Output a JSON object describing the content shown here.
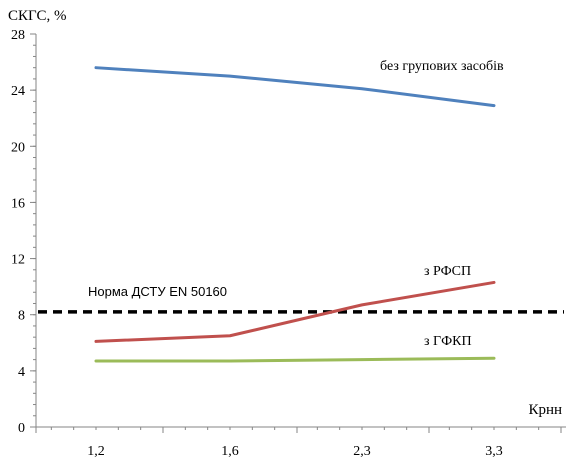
{
  "chart_data": {
    "type": "line",
    "ylabel": "СКГС, %",
    "xlabel": "Крнн",
    "categories": [
      "1,2",
      "1,6",
      "2,3",
      "3,3"
    ],
    "ylim": [
      0,
      28
    ],
    "yticks": [
      0,
      4,
      8,
      12,
      16,
      20,
      24,
      28
    ],
    "grid": false,
    "series": [
      {
        "name": "без групових засобів",
        "color": "#4f81bd",
        "values": [
          25.6,
          25.0,
          24.1,
          22.9
        ]
      },
      {
        "name": "з РФСП",
        "color": "#c0504d",
        "values": [
          6.1,
          6.5,
          8.7,
          10.3
        ]
      },
      {
        "name": "з ГФКП",
        "color": "#9bbb59",
        "values": [
          4.7,
          4.7,
          4.8,
          4.9
        ]
      }
    ],
    "reference_line": {
      "label": "Норма ДСТУ  EN 50160",
      "value": 8.2,
      "color": "#000000"
    }
  }
}
